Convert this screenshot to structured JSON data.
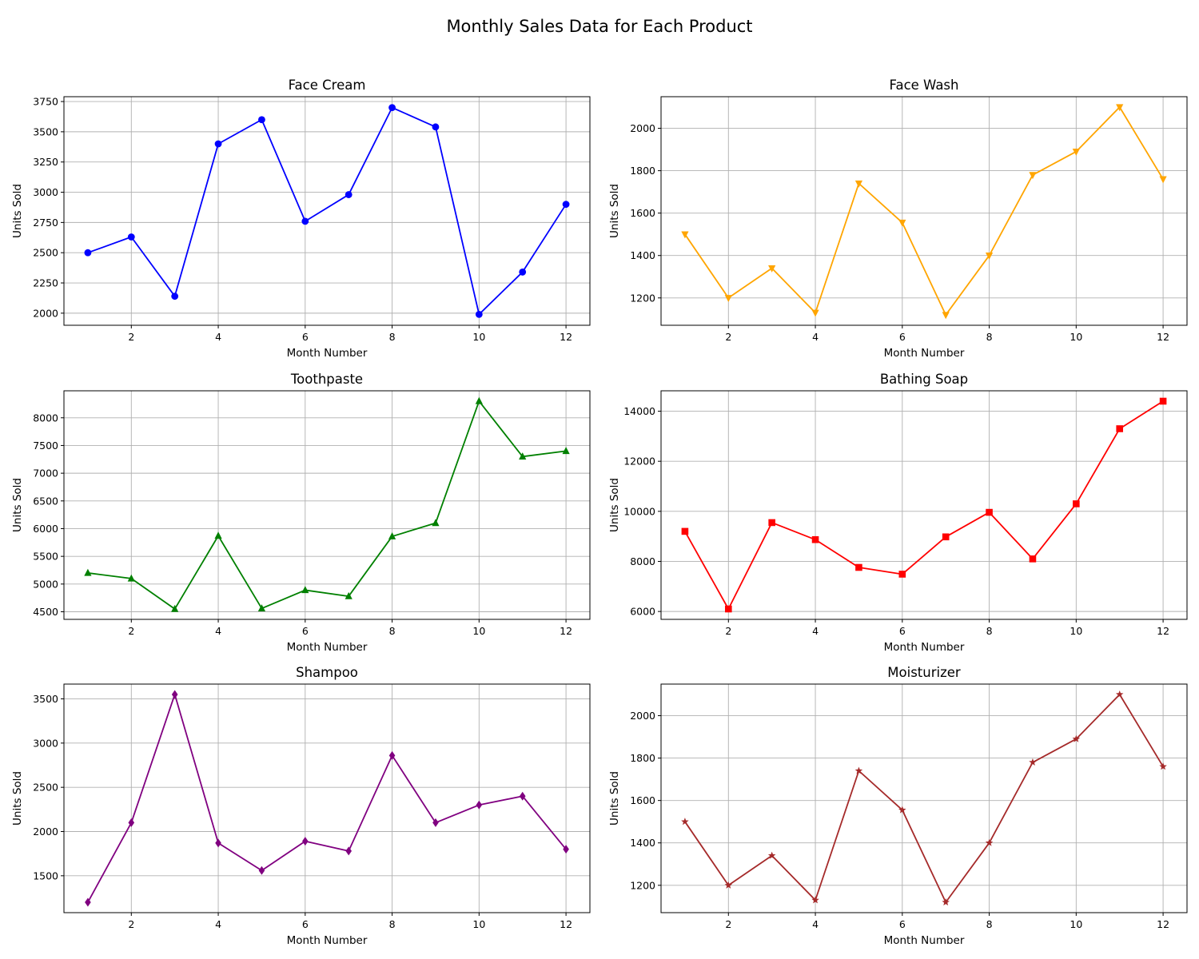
{
  "figure": {
    "title": "Monthly Sales Data for Each Product"
  },
  "chart_data": [
    {
      "type": "line",
      "title": "Face Cream",
      "xlabel": "Month Number",
      "ylabel": "Units Sold",
      "x": [
        1,
        2,
        3,
        4,
        5,
        6,
        7,
        8,
        9,
        10,
        11,
        12
      ],
      "series": [
        {
          "values": [
            2500,
            2630,
            2140,
            3400,
            3600,
            2760,
            2980,
            3700,
            3540,
            1990,
            2340,
            2900
          ],
          "color": "#0000ff",
          "marker": "circle"
        }
      ],
      "xlim": [
        0.45,
        12.55
      ],
      "ylim": [
        1900,
        3790
      ],
      "xticks": [
        2,
        4,
        6,
        8,
        10,
        12
      ],
      "yticks": [
        2000,
        2250,
        2500,
        2750,
        3000,
        3250,
        3500,
        3750
      ],
      "grid": true
    },
    {
      "type": "line",
      "title": "Face Wash",
      "xlabel": "Month Number",
      "ylabel": "Units Sold",
      "x": [
        1,
        2,
        3,
        4,
        5,
        6,
        7,
        8,
        9,
        10,
        11,
        12
      ],
      "series": [
        {
          "values": [
            1500,
            1200,
            1340,
            1130,
            1740,
            1555,
            1120,
            1400,
            1780,
            1890,
            2100,
            1760
          ],
          "color": "#ffa500",
          "marker": "triangle-down"
        }
      ],
      "xlim": [
        0.45,
        12.55
      ],
      "ylim": [
        1071,
        2149
      ],
      "xticks": [
        2,
        4,
        6,
        8,
        10,
        12
      ],
      "yticks": [
        1200,
        1400,
        1600,
        1800,
        2000
      ],
      "grid": true
    },
    {
      "type": "line",
      "title": "Toothpaste",
      "xlabel": "Month Number",
      "ylabel": "Units Sold",
      "x": [
        1,
        2,
        3,
        4,
        5,
        6,
        7,
        8,
        9,
        10,
        11,
        12
      ],
      "series": [
        {
          "values": [
            5200,
            5100,
            4550,
            5870,
            4560,
            4890,
            4780,
            5860,
            6100,
            8300,
            7300,
            7400
          ],
          "color": "#008000",
          "marker": "triangle-up"
        }
      ],
      "xlim": [
        0.45,
        12.55
      ],
      "ylim": [
        4363,
        8487
      ],
      "xticks": [
        2,
        4,
        6,
        8,
        10,
        12
      ],
      "yticks": [
        4500,
        5000,
        5500,
        6000,
        6500,
        7000,
        7500,
        8000
      ],
      "grid": true
    },
    {
      "type": "line",
      "title": "Bathing Soap",
      "xlabel": "Month Number",
      "ylabel": "Units Sold",
      "x": [
        1,
        2,
        3,
        4,
        5,
        6,
        7,
        8,
        9,
        10,
        11,
        12
      ],
      "series": [
        {
          "values": [
            9200,
            6100,
            9550,
            8870,
            7760,
            7490,
            8980,
            9960,
            8100,
            10300,
            13300,
            14400
          ],
          "color": "#ff0000",
          "marker": "square"
        }
      ],
      "xlim": [
        0.45,
        12.55
      ],
      "ylim": [
        5685,
        14815
      ],
      "xticks": [
        2,
        4,
        6,
        8,
        10,
        12
      ],
      "yticks": [
        6000,
        8000,
        10000,
        12000,
        14000
      ],
      "grid": true
    },
    {
      "type": "line",
      "title": "Shampoo",
      "xlabel": "Month Number",
      "ylabel": "Units Sold",
      "x": [
        1,
        2,
        3,
        4,
        5,
        6,
        7,
        8,
        9,
        10,
        11,
        12
      ],
      "series": [
        {
          "values": [
            1200,
            2100,
            3550,
            1870,
            1560,
            1890,
            1780,
            2860,
            2100,
            2300,
            2400,
            1800
          ],
          "color": "#800080",
          "marker": "diamond"
        }
      ],
      "xlim": [
        0.45,
        12.55
      ],
      "ylim": [
        1083,
        3667
      ],
      "xticks": [
        2,
        4,
        6,
        8,
        10,
        12
      ],
      "yticks": [
        1500,
        2000,
        2500,
        3000,
        3500
      ],
      "grid": true
    },
    {
      "type": "line",
      "title": "Moisturizer",
      "xlabel": "Month Number",
      "ylabel": "Units Sold",
      "x": [
        1,
        2,
        3,
        4,
        5,
        6,
        7,
        8,
        9,
        10,
        11,
        12
      ],
      "series": [
        {
          "values": [
            1500,
            1200,
            1340,
            1130,
            1740,
            1555,
            1120,
            1400,
            1780,
            1890,
            2100,
            1760
          ],
          "color": "#a52a2a",
          "marker": "star"
        }
      ],
      "xlim": [
        0.45,
        12.55
      ],
      "ylim": [
        1071,
        2149
      ],
      "xticks": [
        2,
        4,
        6,
        8,
        10,
        12
      ],
      "yticks": [
        1200,
        1400,
        1600,
        1800,
        2000
      ],
      "grid": true
    }
  ]
}
